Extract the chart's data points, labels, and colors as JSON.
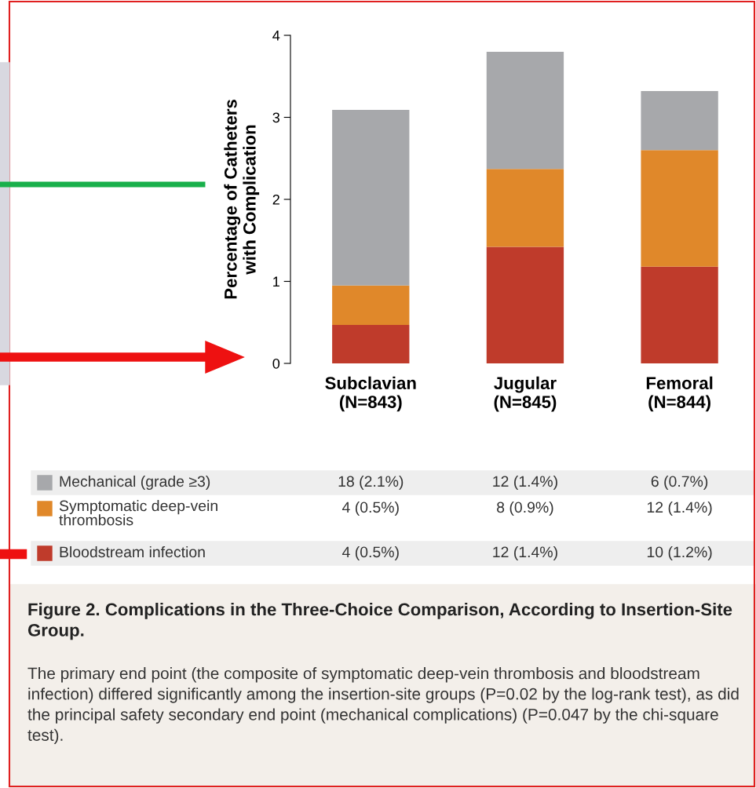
{
  "chart_data": {
    "type": "bar",
    "stacked": true,
    "title": "Figure 2. Complications in the Three-Choice Comparison, According to Insertion-Site Group.",
    "ylabel": "Percentage of Catheters\nwith Complication",
    "categories": [
      "Subclavian\n(N=843)",
      "Jugular\n(N=845)",
      "Femoral\n(N=844)"
    ],
    "series": [
      {
        "name": "Bloodstream infection",
        "color": "#bf3b2b",
        "values": [
          0.47,
          1.42,
          1.18
        ],
        "value_labels": [
          "4 (0.5%)",
          "12 (1.4%)",
          "10 (1.2%)"
        ]
      },
      {
        "name": "Symptomatic deep-vein\nthrombosis",
        "color": "#e0882a",
        "values": [
          0.48,
          0.95,
          1.42
        ],
        "value_labels": [
          "4 (0.5%)",
          "8 (0.9%)",
          "12 (1.4%)"
        ]
      },
      {
        "name": "Mechanical (grade ≥3)",
        "color": "#a7a8ab",
        "values": [
          2.14,
          1.43,
          0.72
        ],
        "value_labels": [
          "18 (2.1%)",
          "12 (1.4%)",
          "6 (0.7%)"
        ]
      }
    ],
    "ylim": [
      0,
      4
    ],
    "yticks": [
      0,
      1,
      2,
      3,
      4
    ],
    "grid": false,
    "legend": "bottom",
    "annotations": [
      "The primary end point (the composite of symptomatic deep-vein thrombosis and bloodstream infection) differed significantly among the insertion-site groups (P=0.02 by the log-rank test), as did the principal safety secondary end point (mechanical complications) (P=0.047 by the chi-square test)."
    ]
  }
}
